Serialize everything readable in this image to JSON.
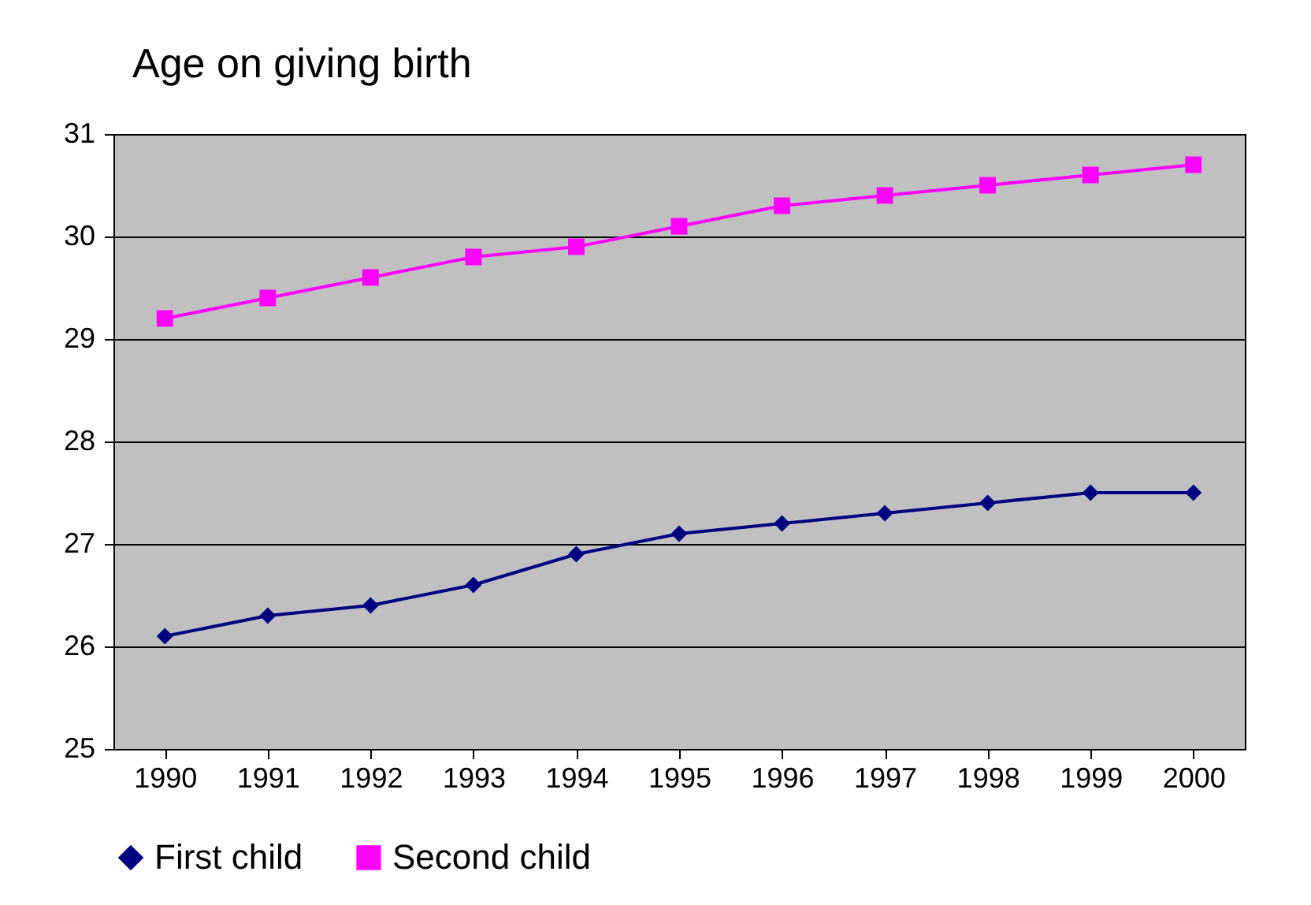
{
  "chart_data": {
    "type": "line",
    "title": "Age on giving birth",
    "categories": [
      "1990",
      "1991",
      "1992",
      "1993",
      "1994",
      "1995",
      "1996",
      "1997",
      "1998",
      "1999",
      "2000"
    ],
    "series": [
      {
        "name": "First child",
        "color": "#000080",
        "marker": "diamond",
        "values": [
          26.1,
          26.3,
          26.4,
          26.6,
          26.9,
          27.1,
          27.2,
          27.3,
          27.4,
          27.5,
          27.5
        ]
      },
      {
        "name": "Second child",
        "color": "#ff00ff",
        "marker": "square",
        "values": [
          29.2,
          29.4,
          29.6,
          29.8,
          29.9,
          30.1,
          30.3,
          30.4,
          30.5,
          30.6,
          30.7
        ]
      }
    ],
    "ylim": [
      25,
      31
    ],
    "yticks": [
      25,
      26,
      27,
      28,
      29,
      30,
      31
    ],
    "grid": "y",
    "legend": "bottom"
  }
}
